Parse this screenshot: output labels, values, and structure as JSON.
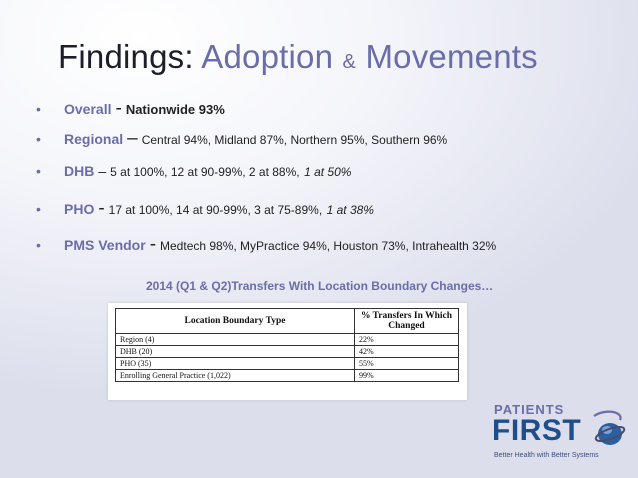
{
  "title": {
    "part1": "Findings:",
    "part2": "Adoption",
    "amp": "&",
    "part3": "Movements"
  },
  "bullets": [
    {
      "key": "Overall",
      "sep": "-",
      "value": "Nationwide 93%",
      "italic": ""
    },
    {
      "key": "Regional",
      "sep": "–",
      "value": "Central 94%, Midland 87%, Northern 95%, Southern 96%",
      "italic": ""
    },
    {
      "key": "DHB",
      "sep": "–",
      "value": "5 at 100%, 12 at 90-99%, 2 at 88%,",
      "italic": "1 at 50%"
    },
    {
      "key": "PHO",
      "sep": "-",
      "value": "17 at 100%, 14 at 90-99%, 3 at 75-89%,",
      "italic": "1 at 38%"
    },
    {
      "key": "PMS Vendor",
      "sep": "-",
      "value": "Medtech 98%, MyPractice 94%, Houston 73%, Intrahealth 32%",
      "italic": ""
    }
  ],
  "caption": "2014 (Q1 & Q2)Transfers With Location Boundary Changes…",
  "table": {
    "headers": [
      "Location Boundary Type",
      "% Transfers In Which Changed"
    ],
    "rows": [
      [
        "Region (4)",
        "22%"
      ],
      [
        "DHB (20)",
        "42%"
      ],
      [
        "PHO (35)",
        "55%"
      ],
      [
        "Enrolling General Practice (1,022)",
        "99%"
      ]
    ]
  },
  "logo": {
    "top": "PATIENTS",
    "main": "FIRST",
    "tagline": "Better Health with Better Systems",
    "icon": "swirl-globe-icon"
  },
  "colors": {
    "accent": "#6a6da8",
    "logo_blue": "#1f4f8b"
  }
}
